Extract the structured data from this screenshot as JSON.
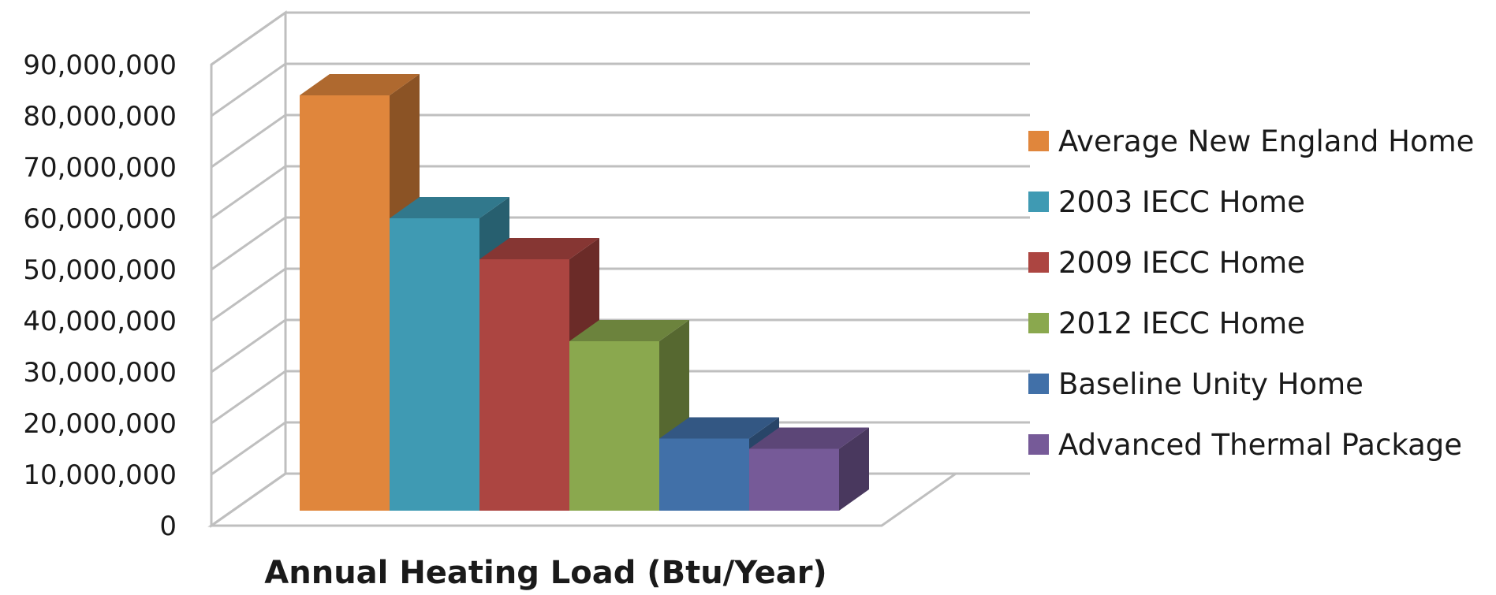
{
  "chart_data": {
    "type": "bar",
    "title": "",
    "xlabel": "Annual Heating Load (Btu/Year)",
    "ylabel": "",
    "ylim": [
      0,
      90000000
    ],
    "yticks": [
      {
        "value": 0,
        "label": "0"
      },
      {
        "value": 10000000,
        "label": "10,000,000"
      },
      {
        "value": 20000000,
        "label": "20,000,000"
      },
      {
        "value": 30000000,
        "label": "30,000,000"
      },
      {
        "value": 40000000,
        "label": "40,000,000"
      },
      {
        "value": 50000000,
        "label": "50,000,000"
      },
      {
        "value": 60000000,
        "label": "60,000,000"
      },
      {
        "value": 70000000,
        "label": "70,000,000"
      },
      {
        "value": 80000000,
        "label": "80,000,000"
      },
      {
        "value": 90000000,
        "label": "90,000,000"
      }
    ],
    "grid": true,
    "style": "3d-column",
    "legend_position": "right",
    "categories": [
      "Annual Heating Load (Btu/Year)"
    ],
    "series": [
      {
        "name": "Average New England Home",
        "value": 84000000,
        "color": "#e0863c"
      },
      {
        "name": "2003 IECC Home",
        "value": 60000000,
        "color": "#3f9ab3"
      },
      {
        "name": "2009 IECC Home",
        "value": 52000000,
        "color": "#ac4541"
      },
      {
        "name": "2012 IECC Home",
        "value": 36000000,
        "color": "#8aa84e"
      },
      {
        "name": "Baseline Unity Home",
        "value": 17000000,
        "color": "#4170a8"
      },
      {
        "name": "Advanced Thermal Package",
        "value": 15000000,
        "color": "#765a98"
      }
    ]
  }
}
